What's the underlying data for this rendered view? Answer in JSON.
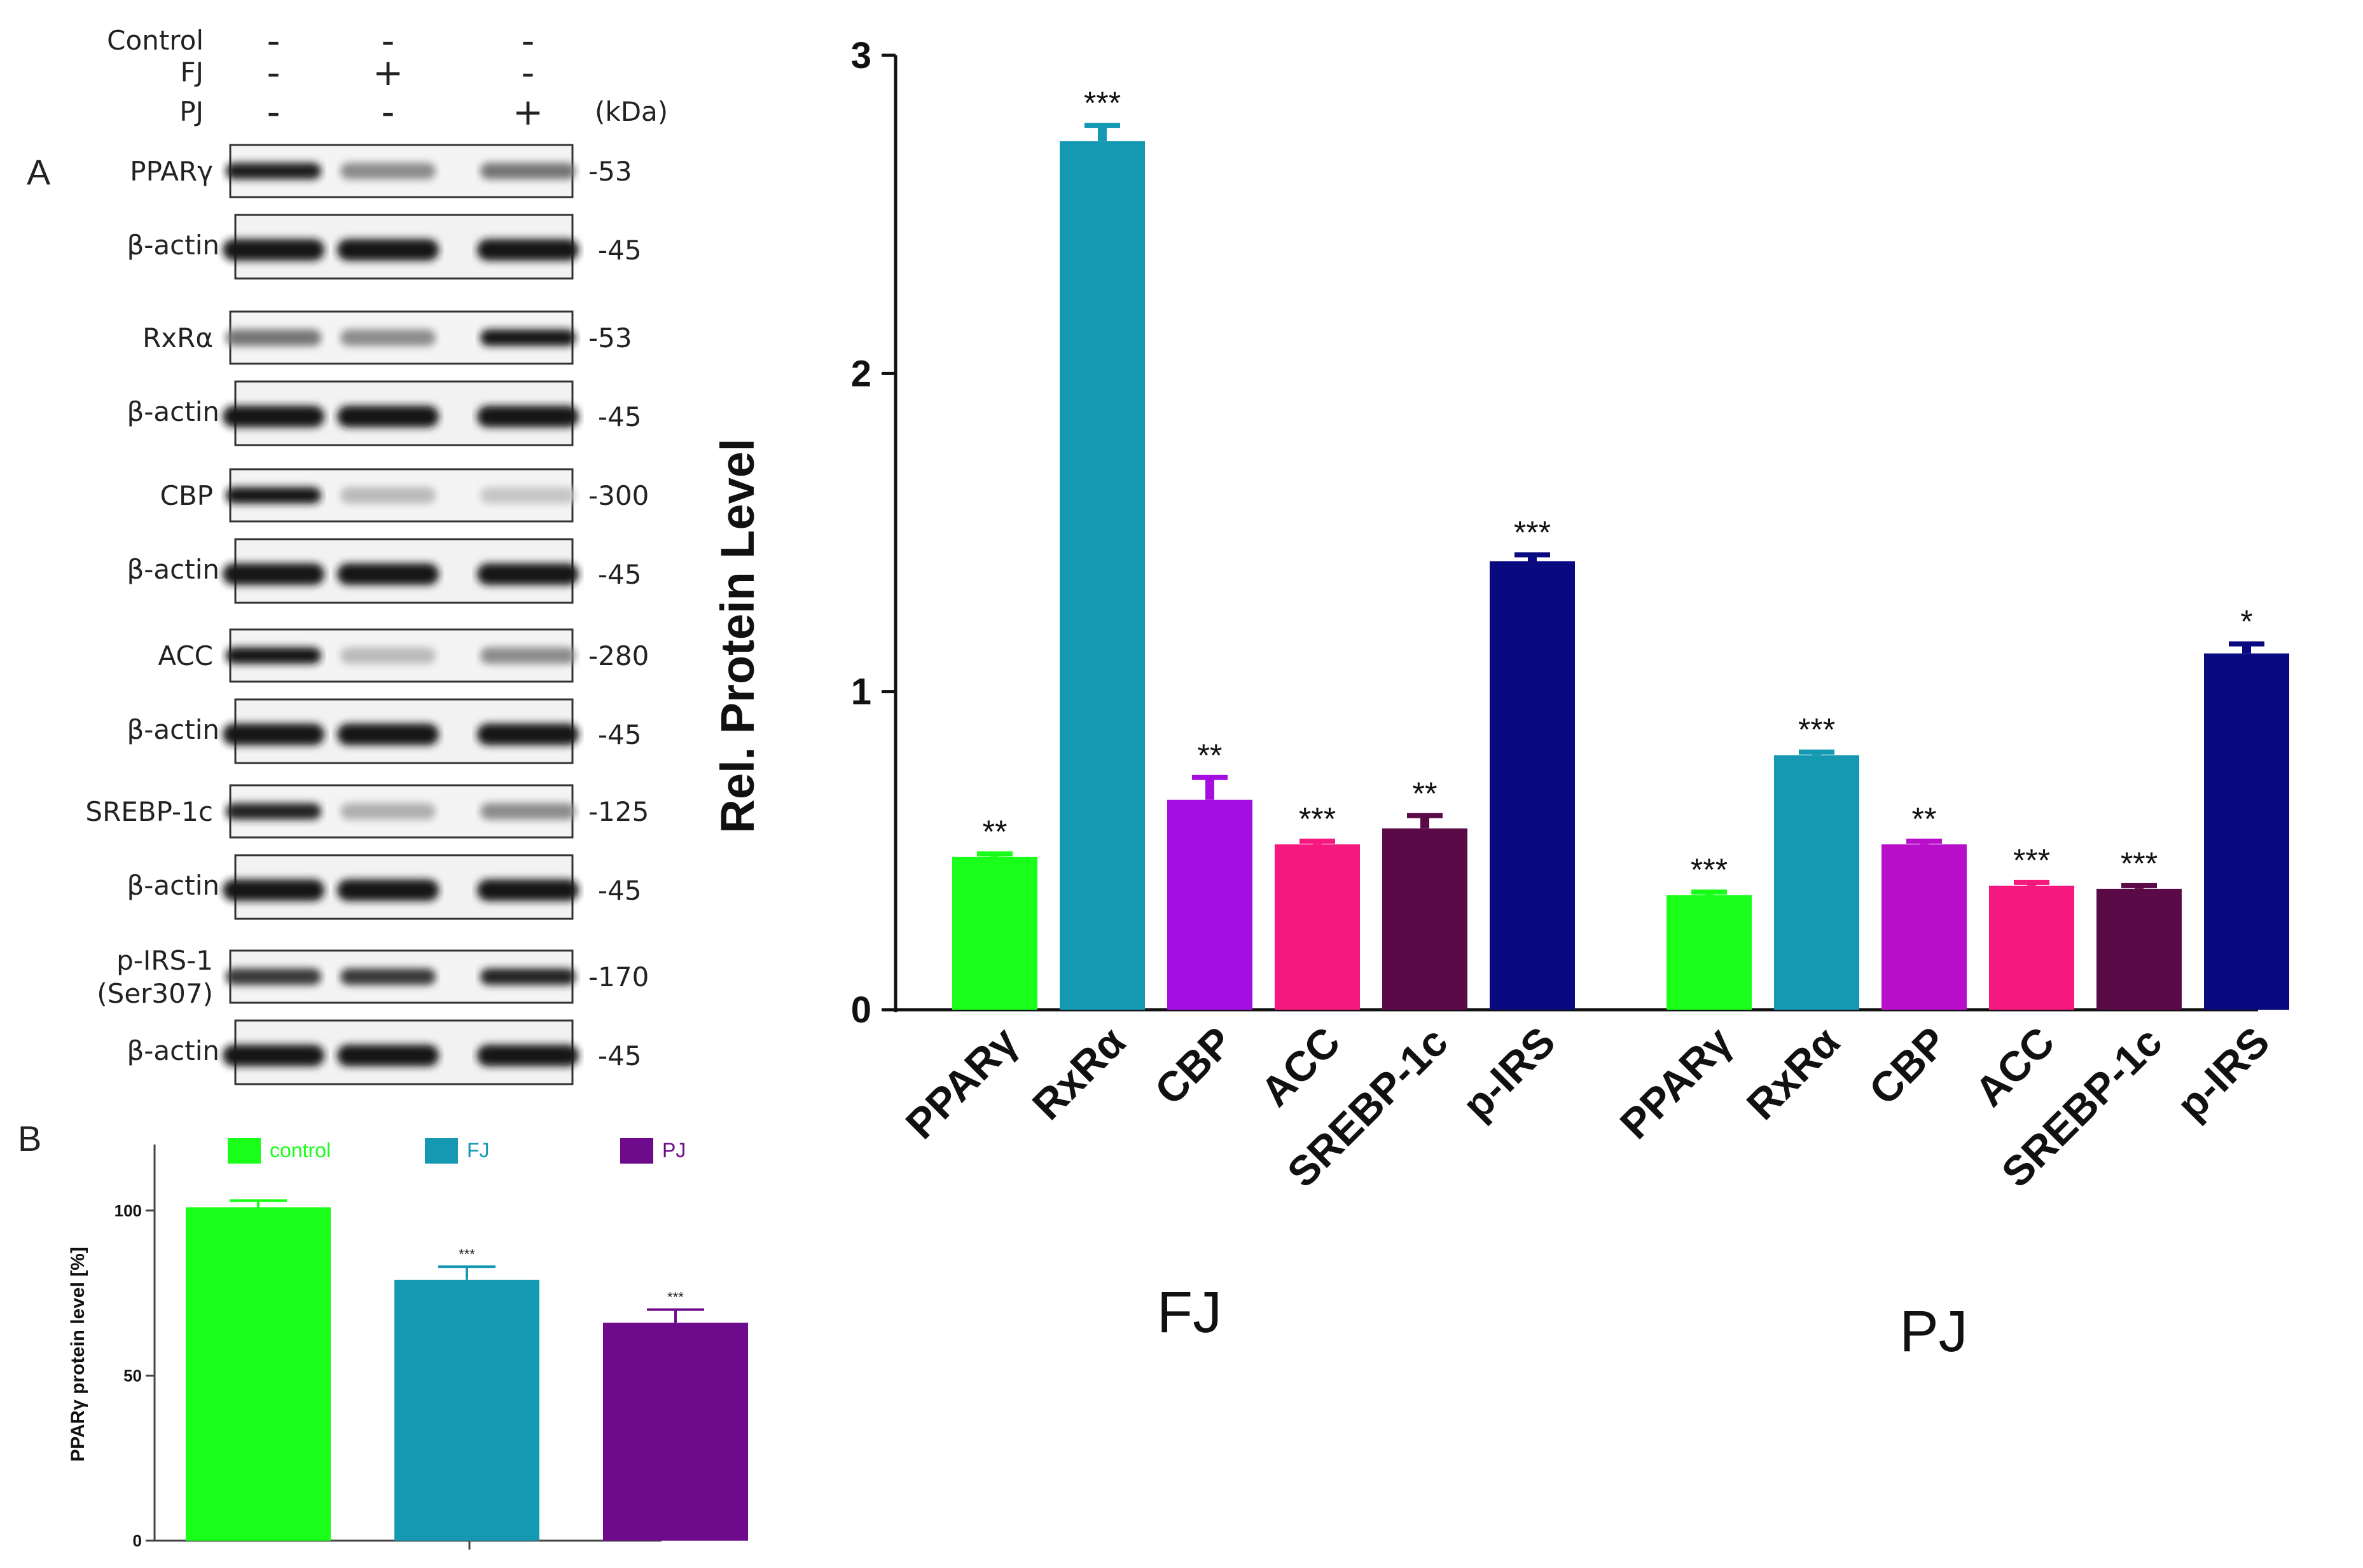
{
  "panel_a": {
    "letter": "A",
    "conditions": [
      {
        "label": "Control",
        "signs": [
          "-",
          "-",
          "-"
        ]
      },
      {
        "label": "FJ",
        "signs": [
          "-",
          "+",
          "-"
        ]
      },
      {
        "label": "PJ",
        "signs": [
          "-",
          "-",
          "+"
        ]
      }
    ],
    "kda_header": "(kDa)",
    "blots": [
      {
        "label": "PPARγ",
        "kda": "-53",
        "actin_label": "β-actin",
        "actin_kda": "-45",
        "intensity": [
          0.92,
          0.45,
          0.55
        ]
      },
      {
        "label": "RxRα",
        "kda": "-53",
        "actin_label": "β-actin",
        "actin_kda": "-45",
        "intensity": [
          0.55,
          0.45,
          0.95
        ]
      },
      {
        "label": "CBP",
        "kda": "-300",
        "actin_label": "β-actin",
        "actin_kda": "-45",
        "intensity": [
          0.95,
          0.25,
          0.2
        ]
      },
      {
        "label": "ACC",
        "kda": "-280",
        "actin_label": "β-actin",
        "actin_kda": "-45",
        "intensity": [
          0.95,
          0.25,
          0.45
        ]
      },
      {
        "label": "SREBP-1c",
        "kda": "-125",
        "actin_label": "β-actin",
        "actin_kda": "-45",
        "intensity": [
          0.9,
          0.3,
          0.45
        ]
      },
      {
        "label": "p-IRS-1",
        "label2": "(Ser307)",
        "kda": "-170",
        "actin_label": "β-actin",
        "actin_kda": "-45",
        "intensity": [
          0.8,
          0.8,
          0.9
        ]
      }
    ]
  },
  "panel_b": {
    "letter": "B"
  },
  "chart_data": [
    {
      "type": "bar",
      "title": "",
      "ylabel": "Rel. Protein Level",
      "xlabel": "",
      "ylim": [
        0,
        3
      ],
      "yticks": [
        "0",
        "1",
        "2",
        "3"
      ],
      "groups": [
        {
          "name": "FJ",
          "categories": [
            "PPARγ",
            "RxRα",
            "CBP",
            "ACC",
            "SREBP-1c",
            "p-IRS"
          ],
          "values": [
            0.48,
            2.73,
            0.66,
            0.52,
            0.57,
            1.41
          ],
          "errors": [
            0.01,
            0.05,
            0.07,
            0.01,
            0.04,
            0.02
          ],
          "significance": [
            "**",
            "***",
            "**",
            "***",
            "**",
            "***"
          ],
          "colors": [
            "#1aff1a",
            "#1599b3",
            "#a50ee0",
            "#f5197f",
            "#5a0a47",
            "#0a0a80"
          ]
        },
        {
          "name": "PJ",
          "categories": [
            "PPARγ",
            "RxRα",
            "CBP",
            "ACC",
            "SREBP-1c",
            "p-IRS"
          ],
          "values": [
            0.36,
            0.8,
            0.52,
            0.39,
            0.38,
            1.12
          ],
          "errors": [
            0.01,
            0.01,
            0.01,
            0.01,
            0.01,
            0.03
          ],
          "significance": [
            "***",
            "***",
            "**",
            "***",
            "***",
            "*"
          ],
          "colors": [
            "#1aff1a",
            "#1599b3",
            "#b80ec9",
            "#f5197f",
            "#5a0a47",
            "#0a0a80"
          ]
        }
      ]
    },
    {
      "type": "bar",
      "title": "",
      "ylabel": "PPARγ protein level [%]",
      "xlabel": "",
      "ylim": [
        0,
        120
      ],
      "yticks": [
        "0",
        "50",
        "100"
      ],
      "categories": [
        "control",
        "FJ",
        "PJ"
      ],
      "values": [
        101,
        79,
        66
      ],
      "errors": [
        2,
        4,
        4
      ],
      "significance": [
        "",
        "***",
        "***"
      ],
      "colors": [
        "#1aff1a",
        "#1599b3",
        "#6e0a8c"
      ],
      "legend": [
        "control",
        "FJ",
        "PJ"
      ]
    }
  ]
}
